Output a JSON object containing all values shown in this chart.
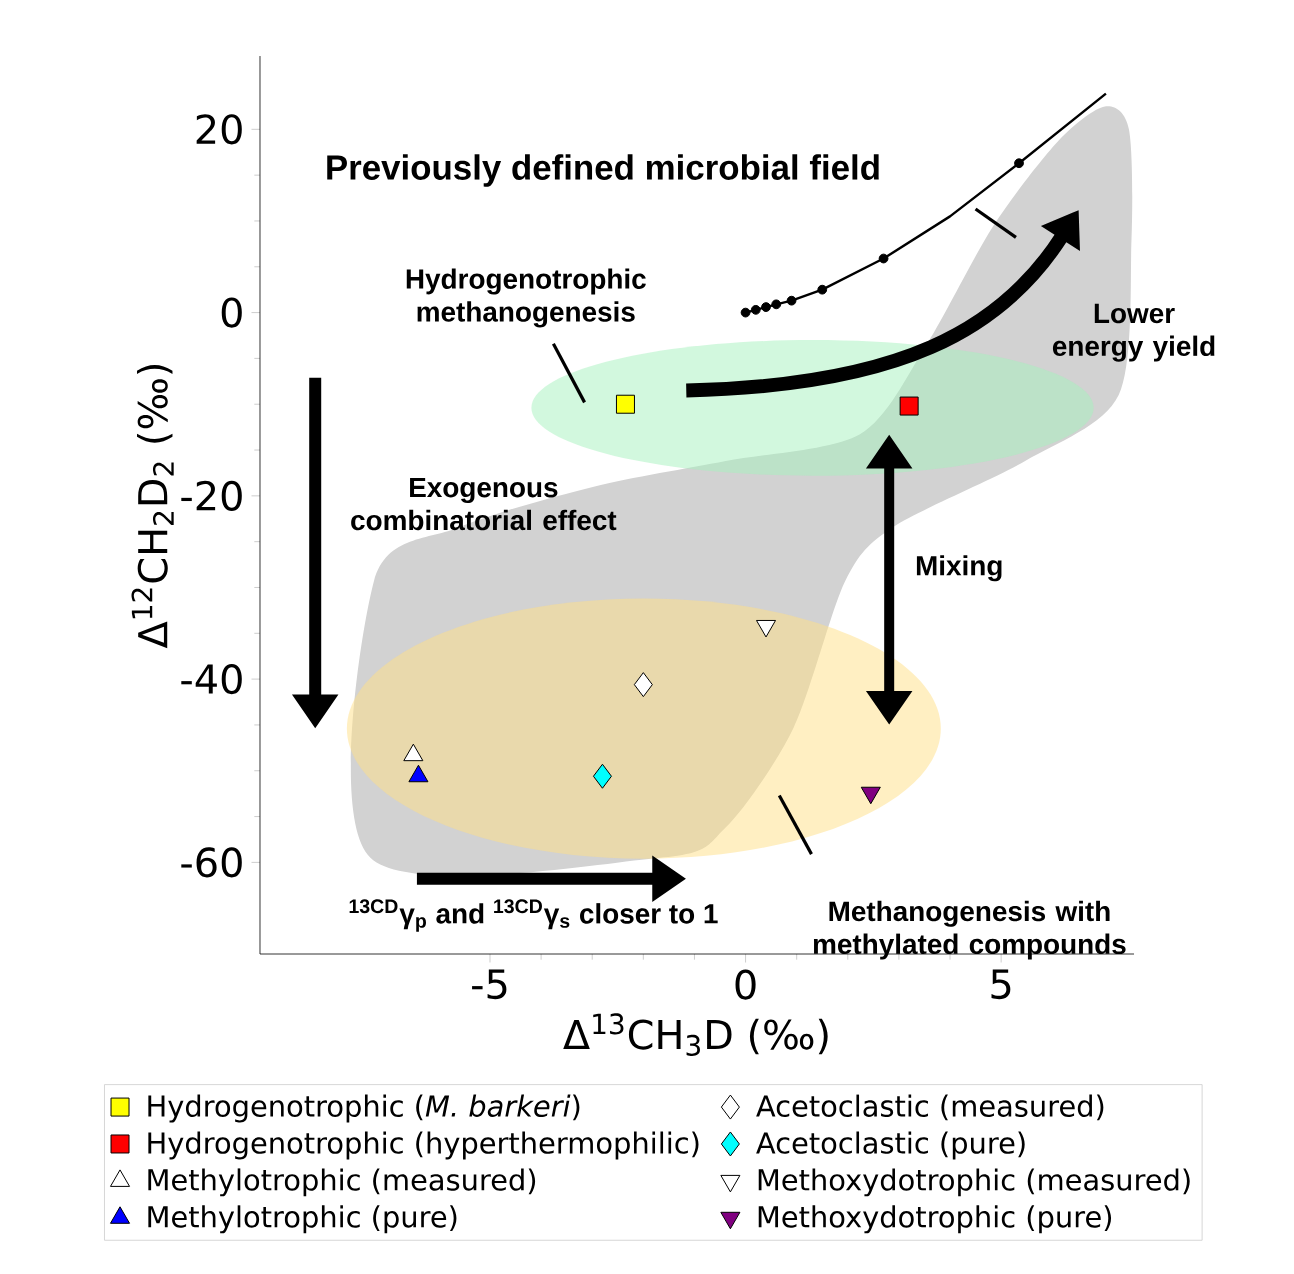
{
  "chart_data": {
    "type": "scatter",
    "xlabel": "Δ$^{13}$CH$_{3}$D (‰)",
    "ylabel": "Δ$^{12}$CH$_{2}$D$_{2}$ (‰)",
    "xlim": [
      -9.5,
      7.6
    ],
    "ylim": [
      -70,
      28
    ],
    "xticks": [
      -5,
      0,
      5
    ],
    "yticks": [
      -60,
      -40,
      -20,
      0,
      20
    ],
    "legend": "bottom",
    "series": [
      {
        "type": "area",
        "color": "#d2d2d2",
        "x": [
          -7.34,
          -7.27,
          -5.59,
          -2.97,
          -0.39,
          2.23,
          3.52,
          4.84,
          6.13,
          7.03,
          7.5,
          7.55,
          7.3,
          5.47,
          2.89,
          1.95,
          0.94,
          -0.39,
          -1.68
        ],
        "values": [
          -59.5,
          -29.3,
          -23.4,
          -19.0,
          -16.2,
          -13.3,
          -3.7,
          9.4,
          18.8,
          22.5,
          20.0,
          7.9,
          -9.0,
          -16.2,
          -23.4,
          -29.3,
          -45.3,
          -56.2,
          -59.5
        ]
      },
      {
        "name": "Hydrogenotrophic (*M. barkeri*)",
        "color": "#ffff00",
        "marker": "square",
        "x": [
          -2.35
        ],
        "values": [
          -10
        ]
      },
      {
        "name": "Hydrogenotrophic (hyperthermophilic)",
        "color": "#ff0000",
        "marker": "square",
        "x": [
          3.2
        ],
        "values": [
          -10.2
        ]
      },
      {
        "name": "Methylotrophic (measured)",
        "color": "#ffffff",
        "marker": "triangle",
        "x": [
          -6.5
        ],
        "values": [
          -48.3
        ]
      },
      {
        "name": "Methylotrophic (pure)",
        "color": "#0000ff",
        "marker": "triangle",
        "x": [
          -6.4
        ],
        "values": [
          -50.6
        ]
      },
      {
        "name": "Acetoclastic (measured)",
        "color": "#ffffff",
        "marker": "diamond",
        "x": [
          -2.0
        ],
        "values": [
          -40.6
        ]
      },
      {
        "name": "Acetoclastic (pure)",
        "color": "#00ffff",
        "marker": "diamond",
        "x": [
          -2.8
        ],
        "values": [
          -50.6
        ]
      },
      {
        "name": "Methoxydotrophic (measured)",
        "color": "#ffffff",
        "marker": "triangle_down",
        "x": [
          0.4
        ],
        "values": [
          -34.2
        ]
      },
      {
        "name": "Methoxydotrophic (pure)",
        "color": "#800080",
        "marker": "triangle_down",
        "x": [
          2.45
        ],
        "values": [
          -52.4
        ]
      },
      {
        "type": "line",
        "color": "#000000",
        "marker": "none",
        "x": [
          0,
          0.2,
          0.4,
          0.6,
          0.9,
          1.5,
          2.7,
          4.0,
          5.35,
          7.05
        ],
        "values": [
          0,
          0.3,
          0.6,
          0.9,
          1.3,
          2.5,
          5.9,
          10.5,
          16.3,
          23.9
        ]
      },
      {
        "type": "scatter",
        "color": "#000000",
        "marker": "circle",
        "x": [
          0,
          0.2,
          0.4,
          0.6,
          0.9,
          1.5,
          2.7,
          5.35
        ],
        "values": [
          0,
          0.3,
          0.6,
          0.9,
          1.3,
          2.5,
          5.9,
          16.3
        ]
      }
    ],
    "annotations": [
      "Previously defined microbial field",
      "Hydrogenotrophic methanogenesis",
      "Lower energy yield",
      "Exogenous combinatorial effect",
      "Mixing",
      "$^{13CD}$γ$_{p}$ and $^{13CD}$γ$_{s}$ closer to 1",
      "Methanogenesis with methylated compounds"
    ]
  }
}
